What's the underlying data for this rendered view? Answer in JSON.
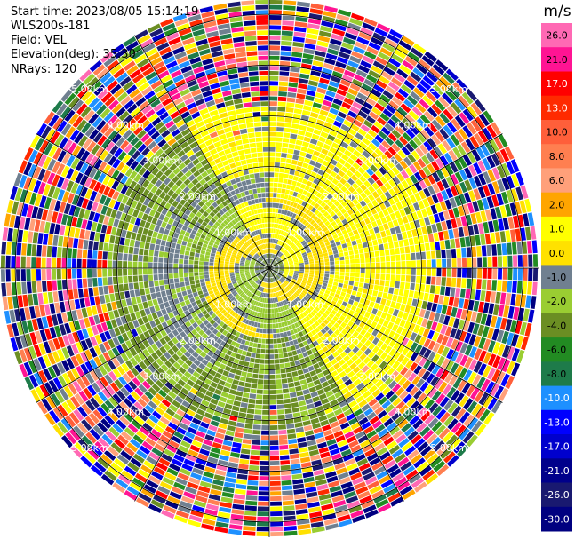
{
  "info": {
    "start_time": "Start time: 2023/08/05 15:14:19",
    "instrument": "WLS200s-181",
    "field": "Field: VEL",
    "elevation": "Elevation(deg): 35.30",
    "nrays": "NRays: 120"
  },
  "chart_data": {
    "type": "heatmap",
    "projection": "polar PPI",
    "field": "VEL",
    "range_rings_km": [
      1.0,
      2.0,
      3.0,
      4.0,
      5.0
    ],
    "ring_labels": [
      "1.00km",
      "2.00km",
      "3.00km",
      "4.00km",
      "5.00km"
    ],
    "max_range_km": 5.3,
    "n_rays": 120,
    "spokes_every_deg": 30,
    "colorbar": {
      "unit": "m/s",
      "ticks": [
        "26.0",
        "21.0",
        "17.0",
        "13.0",
        "10.0",
        "8.0",
        "6.0",
        "2.0",
        "1.0",
        "0.0",
        "-1.0",
        "-2.0",
        "-4.0",
        "-6.0",
        "-8.0",
        "-10.0",
        "-13.0",
        "-17.0",
        "-21.0",
        "-26.0",
        "-30.0"
      ],
      "colors": [
        "#ff69b4",
        "#ff1493",
        "#ff0000",
        "#ff2a00",
        "#ff5f3a",
        "#ff7f50",
        "#ffa07a",
        "#ffa500",
        "#ffff00",
        "#ffe100",
        "#708090",
        "#9acd32",
        "#6b8e23",
        "#228b22",
        "#1e7b4a",
        "#1e90ff",
        "#0000ff",
        "#0000cd",
        "#00008b",
        "#191970",
        "#000080"
      ]
    },
    "pattern": {
      "noise_start_km": 3.3,
      "positive_sector_start_deg": 330,
      "positive_sector_end_deg": 150,
      "inner_swirl_km": [
        0.3,
        1.4
      ]
    }
  }
}
